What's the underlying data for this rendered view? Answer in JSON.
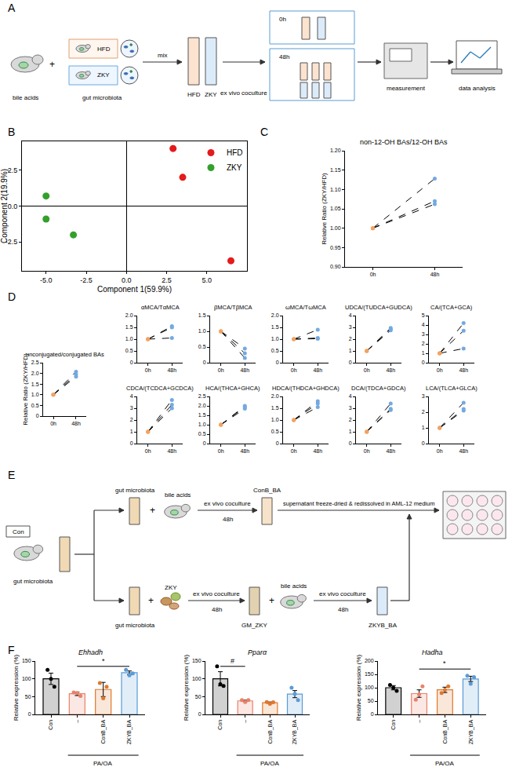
{
  "panels": [
    "A",
    "B",
    "C",
    "D",
    "E",
    "F"
  ],
  "diagrams": {
    "A": {
      "bile_acids": "bile acids",
      "plus": "+",
      "gut_microbiota": "gut microbiota",
      "hfd": "HFD",
      "zky": "ZKY",
      "mix": "mix",
      "tube_hfd": "HFD",
      "tube_zky": "ZKY",
      "coculture": "ex vivo coculture",
      "t0": "0h",
      "t48": "48h",
      "measurement": "measurement",
      "analysis": "data analysis"
    },
    "E": {
      "con": "Con",
      "gut_microbiota": "gut microbiota",
      "up_gm": "gut microbiota",
      "up_plus": "+",
      "up_ba": "bile acids",
      "up_coculture": "ex vivo coculture",
      "up_48h": "48h",
      "conb": "ConB_BA",
      "transfer": "supernatant freeze-dried & redissolved in AML-12 medium",
      "lo_gm": "gut microbiota",
      "lo_plus": "+",
      "lo_zky": "ZKY",
      "lo_coculture": "ex vivo coculture",
      "lo_48h": "48h",
      "gm_zky": "GM_ZKY",
      "lo_plus2": "+",
      "lo_ba": "bile acids",
      "lo_coculture2": "ex vivo coculture",
      "lo_48h2": "48h",
      "zkyb": "ZKYB_BA"
    }
  },
  "chart_data": [
    {
      "type": "scatter",
      "x_label": "Component 1(59.9%)",
      "y_label": "Component 2(19.9%)",
      "series": [
        {
          "name": "HFD",
          "color": "#e41a1c",
          "x": [
            2.9,
            3.5,
            6.5
          ],
          "values": [
            4.0,
            2.0,
            -3.8
          ]
        },
        {
          "name": "ZKY",
          "color": "#33a02c",
          "x": [
            -5.0,
            -5.0,
            -3.3
          ],
          "values": [
            0.7,
            -0.9,
            -2.0
          ]
        }
      ],
      "xlim": [
        -6.5,
        7.5
      ],
      "ylim": [
        -4.5,
        4.5
      ],
      "xticks": [
        {
          "value": -5,
          "label": "-5.0"
        },
        {
          "value": -2.5,
          "label": "-2.5"
        },
        {
          "value": 0,
          "label": "0.0"
        },
        {
          "value": 2.5,
          "label": "2.5"
        },
        {
          "value": 5,
          "label": "5.0"
        }
      ],
      "yticks": [
        {
          "value": -2.5,
          "label": "-2.5"
        },
        {
          "value": 0,
          "label": "0.0"
        },
        {
          "value": 2.5,
          "label": "2.5"
        }
      ],
      "legend": "top right"
    },
    {
      "type": "line",
      "title": "non-12-OH BAs/12-OH BAs",
      "y_label": "Relative Ratio (ZKY/HFD)",
      "categories": [
        "0h",
        "48h"
      ],
      "series": [
        {
          "values": [
            1.0,
            1.128
          ]
        },
        {
          "values": [
            1.0,
            1.07
          ]
        },
        {
          "values": [
            1.0,
            1.062
          ]
        }
      ],
      "colors": [
        "#f4a261",
        "#74a9e0"
      ],
      "line_style": "dash",
      "ylim": [
        0.9,
        1.2
      ],
      "yticks": [
        {
          "value": 0.9,
          "label": "0.90"
        },
        {
          "value": 0.95,
          "label": "0.95"
        },
        {
          "value": 1.0,
          "label": "1.00"
        },
        {
          "value": 1.05,
          "label": "1.05"
        },
        {
          "value": 1.1,
          "label": "1.10"
        },
        {
          "value": 1.15,
          "label": "1.15"
        },
        {
          "value": 1.2,
          "label": "1.20"
        }
      ]
    },
    {
      "type": "line",
      "title": "unconjugated/conjugated BAs",
      "y_label": "Relative Ratio (ZKY/HFD)",
      "categories": [
        "0h",
        "48h"
      ],
      "series": [
        {
          "values": [
            1.0,
            2.08
          ]
        },
        {
          "values": [
            1.0,
            1.95
          ]
        },
        {
          "values": [
            1.0,
            1.85
          ]
        }
      ],
      "colors": [
        "#f4a261",
        "#74a9e0"
      ],
      "line_style": "dash",
      "ylim": [
        0,
        2.5
      ],
      "yticks": [
        0,
        0.5,
        {
          "value": 1,
          "label": "1.0"
        },
        1.5,
        {
          "value": 2,
          "label": "2.0"
        },
        2.5
      ]
    },
    {
      "type": "line",
      "title": "αMCA/TαMCA",
      "categories": [
        "0h",
        "48h"
      ],
      "series": [
        {
          "values": [
            1.0,
            1.55
          ]
        },
        {
          "values": [
            1.0,
            1.5
          ]
        },
        {
          "values": [
            1.0,
            1.05
          ]
        }
      ],
      "colors": [
        "#f4a261",
        "#74a9e0"
      ],
      "line_style": "dash",
      "ylim": [
        0,
        2
      ],
      "yticks": [
        0,
        0.5,
        {
          "value": 1,
          "label": "1.0"
        },
        1.5,
        {
          "value": 2,
          "label": "2.0"
        }
      ]
    },
    {
      "type": "line",
      "title": "βMCA/TβMCA",
      "categories": [
        "0h",
        "48h"
      ],
      "series": [
        {
          "values": [
            1.0,
            0.45
          ]
        },
        {
          "values": [
            1.0,
            0.3
          ]
        },
        {
          "values": [
            1.0,
            0.15
          ]
        }
      ],
      "colors": [
        "#f4a261",
        "#74a9e0"
      ],
      "line_style": "dash",
      "ylim": [
        0,
        1.5
      ],
      "yticks": [
        0,
        0.5,
        {
          "value": 1,
          "label": "1.0"
        },
        1.5
      ]
    },
    {
      "type": "line",
      "title": "ωMCA/TωMCA",
      "categories": [
        "0h",
        "48h"
      ],
      "series": [
        {
          "values": [
            1.0,
            1.4
          ]
        },
        {
          "values": [
            1.0,
            1.05
          ]
        },
        {
          "values": [
            1.0,
            1.02
          ]
        }
      ],
      "colors": [
        "#f4a261",
        "#74a9e0"
      ],
      "line_style": "dash",
      "ylim": [
        0,
        2
      ],
      "yticks": [
        0,
        0.5,
        {
          "value": 1,
          "label": "1.0"
        },
        1.5,
        {
          "value": 2,
          "label": "2.0"
        }
      ]
    },
    {
      "type": "line",
      "title": "UDCA/(TUDCA+GUDCA)",
      "categories": [
        "0h",
        "48h"
      ],
      "series": [
        {
          "values": [
            1.0,
            2.95
          ]
        },
        {
          "values": [
            1.0,
            2.85
          ]
        },
        {
          "values": [
            1.0,
            2.75
          ]
        }
      ],
      "colors": [
        "#f4a261",
        "#74a9e0"
      ],
      "line_style": "dash",
      "ylim": [
        0,
        4
      ],
      "yticks": [
        0,
        1,
        2,
        3,
        4
      ]
    },
    {
      "type": "line",
      "title": "CA/(TCA+GCA)",
      "categories": [
        "0h",
        "48h"
      ],
      "series": [
        {
          "values": [
            1.0,
            4.2
          ]
        },
        {
          "values": [
            1.0,
            3.4
          ]
        },
        {
          "values": [
            1.0,
            1.5
          ]
        }
      ],
      "colors": [
        "#f4a261",
        "#74a9e0"
      ],
      "line_style": "dash",
      "ylim": [
        0,
        5
      ],
      "yticks": [
        0,
        1,
        2,
        3,
        4,
        5
      ]
    },
    {
      "type": "line",
      "title": "CDCA/(TCDCA+GCDCA)",
      "categories": [
        "0h",
        "48h"
      ],
      "series": [
        {
          "values": [
            1.0,
            3.7
          ]
        },
        {
          "values": [
            1.0,
            3.3
          ]
        },
        {
          "values": [
            1.0,
            3.0
          ]
        }
      ],
      "colors": [
        "#f4a261",
        "#74a9e0"
      ],
      "line_style": "dash",
      "ylim": [
        0,
        4
      ],
      "yticks": [
        0,
        1,
        2,
        3,
        4
      ]
    },
    {
      "type": "line",
      "title": "HCA/(THCA+GHCA)",
      "categories": [
        "0h",
        "48h"
      ],
      "series": [
        {
          "values": [
            1.0,
            2.0
          ]
        },
        {
          "values": [
            1.0,
            1.95
          ]
        },
        {
          "values": [
            1.0,
            1.85
          ]
        }
      ],
      "colors": [
        "#f4a261",
        "#74a9e0"
      ],
      "line_style": "dash",
      "ylim": [
        0,
        2.5
      ],
      "yticks": [
        0,
        0.5,
        {
          "value": 1,
          "label": "1.0"
        },
        1.5,
        {
          "value": 2,
          "label": "2.0"
        },
        2.5
      ]
    },
    {
      "type": "line",
      "title": "HDCA/(THDCA+GHDCA)",
      "categories": [
        "0h",
        "48h"
      ],
      "series": [
        {
          "values": [
            1.0,
            1.8
          ]
        },
        {
          "values": [
            1.0,
            1.7
          ]
        },
        {
          "values": [
            1.0,
            1.55
          ]
        }
      ],
      "colors": [
        "#f4a261",
        "#74a9e0"
      ],
      "line_style": "dash",
      "ylim": [
        0,
        2
      ],
      "yticks": [
        0,
        0.5,
        {
          "value": 1,
          "label": "1.0"
        },
        1.5,
        {
          "value": 2,
          "label": "2.0"
        }
      ]
    },
    {
      "type": "line",
      "title": "DCA/(TDCA+GDCA)",
      "categories": [
        "0h",
        "48h"
      ],
      "series": [
        {
          "values": [
            1.0,
            3.4
          ]
        },
        {
          "values": [
            1.0,
            2.95
          ]
        },
        {
          "values": [
            1.0,
            2.85
          ]
        }
      ],
      "colors": [
        "#f4a261",
        "#74a9e0"
      ],
      "line_style": "dash",
      "ylim": [
        0,
        4
      ],
      "yticks": [
        0,
        1,
        2,
        3,
        4
      ]
    },
    {
      "type": "line",
      "title": "LCA/(TLCA+GLCA)",
      "categories": [
        "0h",
        "48h"
      ],
      "series": [
        {
          "values": [
            1.0,
            2.6
          ]
        },
        {
          "values": [
            1.0,
            2.2
          ]
        },
        {
          "values": [
            1.0,
            2.1
          ]
        }
      ],
      "colors": [
        "#f4a261",
        "#74a9e0"
      ],
      "line_style": "dash",
      "ylim": [
        0,
        3
      ],
      "yticks": [
        0,
        1,
        2,
        3
      ]
    },
    {
      "type": "bar",
      "title": "Ehhadh",
      "y_label": "Relative expression (%)",
      "categories": [
        "Con",
        "–",
        "ConB_BA",
        "ZKYB_BA"
      ],
      "values": [
        100,
        58,
        70,
        117
      ],
      "errors": [
        16,
        5,
        20,
        5
      ],
      "points": [
        [
          125,
          100,
          78
        ],
        [
          62,
          60,
          52
        ],
        [
          88,
          45,
          78
        ],
        [
          125,
          110,
          115
        ]
      ],
      "colors": [
        "#000000",
        "#e8826a",
        "#e0782e",
        "#5b9bd5"
      ],
      "ylim": [
        0,
        150
      ],
      "yticks": [
        0,
        50,
        100,
        150
      ],
      "group_label": "PA/OA",
      "group_categories": [
        "–",
        "ConB_BA",
        "ZKYB_BA"
      ],
      "significance": [
        {
          "from": "–",
          "to": "ZKYB_BA",
          "label": "*",
          "y": 135
        }
      ]
    },
    {
      "type": "bar",
      "title": "Pparα",
      "y_label": "Relative expression (%)",
      "categories": [
        "Con",
        "–",
        "ConB_BA",
        "ZKYB_BA"
      ],
      "values": [
        100,
        38,
        33,
        57
      ],
      "errors": [
        20,
        2,
        2,
        10
      ],
      "points": [
        [
          135,
          85,
          80
        ],
        [
          40,
          35,
          40
        ],
        [
          35,
          30,
          34
        ],
        [
          75,
          58,
          40
        ]
      ],
      "colors": [
        "#000000",
        "#e8826a",
        "#e0782e",
        "#5b9bd5"
      ],
      "ylim": [
        0,
        150
      ],
      "yticks": [
        0,
        50,
        100,
        150
      ],
      "group_label": "PA/OA",
      "group_categories": [
        "–",
        "ConB_BA",
        "ZKYB_BA"
      ],
      "significance": [
        {
          "from": "Con",
          "to": "–",
          "label": "#",
          "y": 135
        }
      ]
    },
    {
      "type": "bar",
      "title": "Hadha",
      "y_label": "Relative expression (%)",
      "categories": [
        "Con",
        "–",
        "ConB_BA",
        "ZKYB_BA"
      ],
      "values": [
        100,
        78,
        92,
        133
      ],
      "errors": [
        8,
        14,
        10,
        10
      ],
      "points": [
        [
          110,
          100,
          88
        ],
        [
          55,
          75,
          105
        ],
        [
          80,
          92,
          105
        ],
        [
          145,
          115,
          140
        ]
      ],
      "colors": [
        "#000000",
        "#e8826a",
        "#e0782e",
        "#5b9bd5"
      ],
      "ylim": [
        0,
        200
      ],
      "yticks": [
        0,
        50,
        100,
        150,
        200
      ],
      "group_label": "PA/OA",
      "group_categories": [
        "–",
        "ConB_BA",
        "ZKYB_BA"
      ],
      "significance": [
        {
          "from": "–",
          "to": "ZKYB_BA",
          "label": "*",
          "y": 170
        }
      ]
    }
  ]
}
